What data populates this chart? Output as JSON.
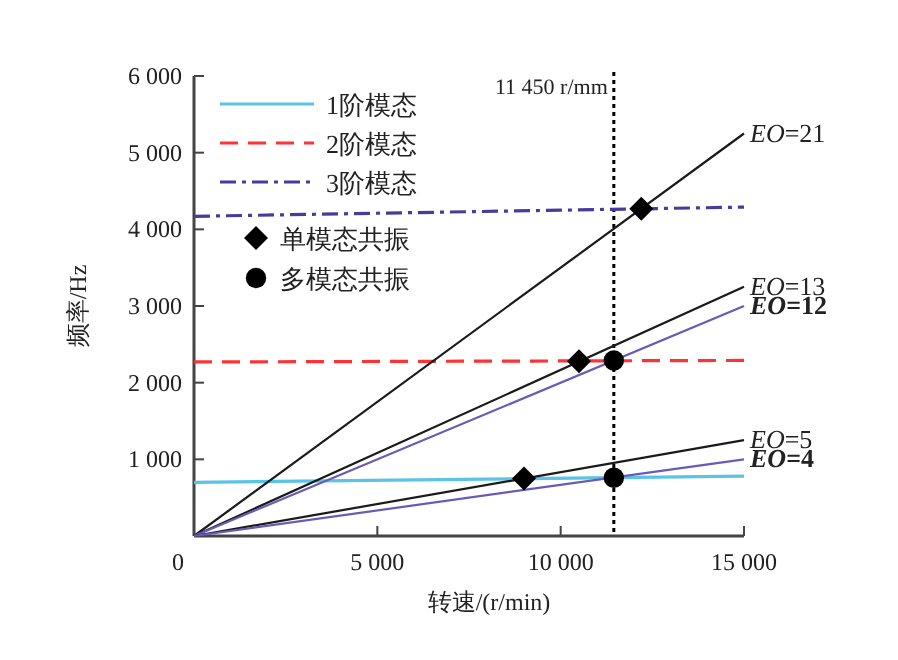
{
  "chart_data": {
    "type": "line",
    "xlabel": "转速/(r/min)",
    "ylabel": "频率/Hz",
    "xlim": [
      0,
      15000
    ],
    "ylim": [
      0,
      6000
    ],
    "xticks": [
      0,
      {
        "value": 5000,
        "label": "5 000"
      },
      {
        "value": 10000,
        "label": "10 000"
      },
      {
        "value": 15000,
        "label": "15 000"
      }
    ],
    "yticks": [
      {
        "value": 0,
        "label": null
      },
      {
        "value": 1000,
        "label": "1 000"
      },
      {
        "value": 2000,
        "label": "2 000"
      },
      {
        "value": 3000,
        "label": "3 000"
      },
      {
        "value": 4000,
        "label": "4 000"
      },
      {
        "value": 5000,
        "label": "5 000"
      },
      {
        "value": 6000,
        "label": "6 000"
      }
    ],
    "legend": "top left",
    "grid": false,
    "ref_lines": [
      {
        "axis": "x",
        "value": 11450,
        "label": "11 450 r/mm",
        "color": "#000000",
        "line_style": "dotted"
      }
    ],
    "series": [
      {
        "name": "1阶模态",
        "color": "#5bc3e6",
        "line_style": "solid",
        "x": [
          0,
          15000
        ],
        "values": [
          700,
          780
        ]
      },
      {
        "name": "2阶模态",
        "color": "#ff3333",
        "line_style": "dashed",
        "x": [
          0,
          15000
        ],
        "values": [
          2270,
          2290
        ]
      },
      {
        "name": "3阶模态",
        "color": "#4a3a9e",
        "line_style": "dashdot",
        "x": [
          0,
          15000
        ],
        "values": [
          4170,
          4290
        ]
      },
      {
        "name": "单模态共振",
        "type": "scatter",
        "marker": "diamond",
        "color": "#000000",
        "x": [
          9000,
          10500,
          12200
        ],
        "values": [
          750,
          2280,
          4270
        ]
      },
      {
        "name": "多模态共振",
        "type": "scatter",
        "marker": "circle",
        "color": "#000000",
        "x": [
          11450,
          11450
        ],
        "values": [
          760,
          2290
        ]
      },
      {
        "name": "EO=21",
        "color": "#1a1a1a",
        "x": [
          0,
          15000
        ],
        "values": [
          0,
          5250
        ]
      },
      {
        "name": "EO=13",
        "color": "#1a1a1a",
        "x": [
          0,
          15000
        ],
        "values": [
          0,
          3250
        ]
      },
      {
        "name": "EO=12",
        "color": "#6a5ab8",
        "x": [
          0,
          15000
        ],
        "values": [
          0,
          3000
        ]
      },
      {
        "name": "EO=5",
        "color": "#1a1a1a",
        "x": [
          0,
          15000
        ],
        "values": [
          0,
          1250
        ]
      },
      {
        "name": "EO=4",
        "color": "#6a5ab8",
        "x": [
          0,
          15000
        ],
        "values": [
          0,
          1000
        ]
      }
    ]
  }
}
